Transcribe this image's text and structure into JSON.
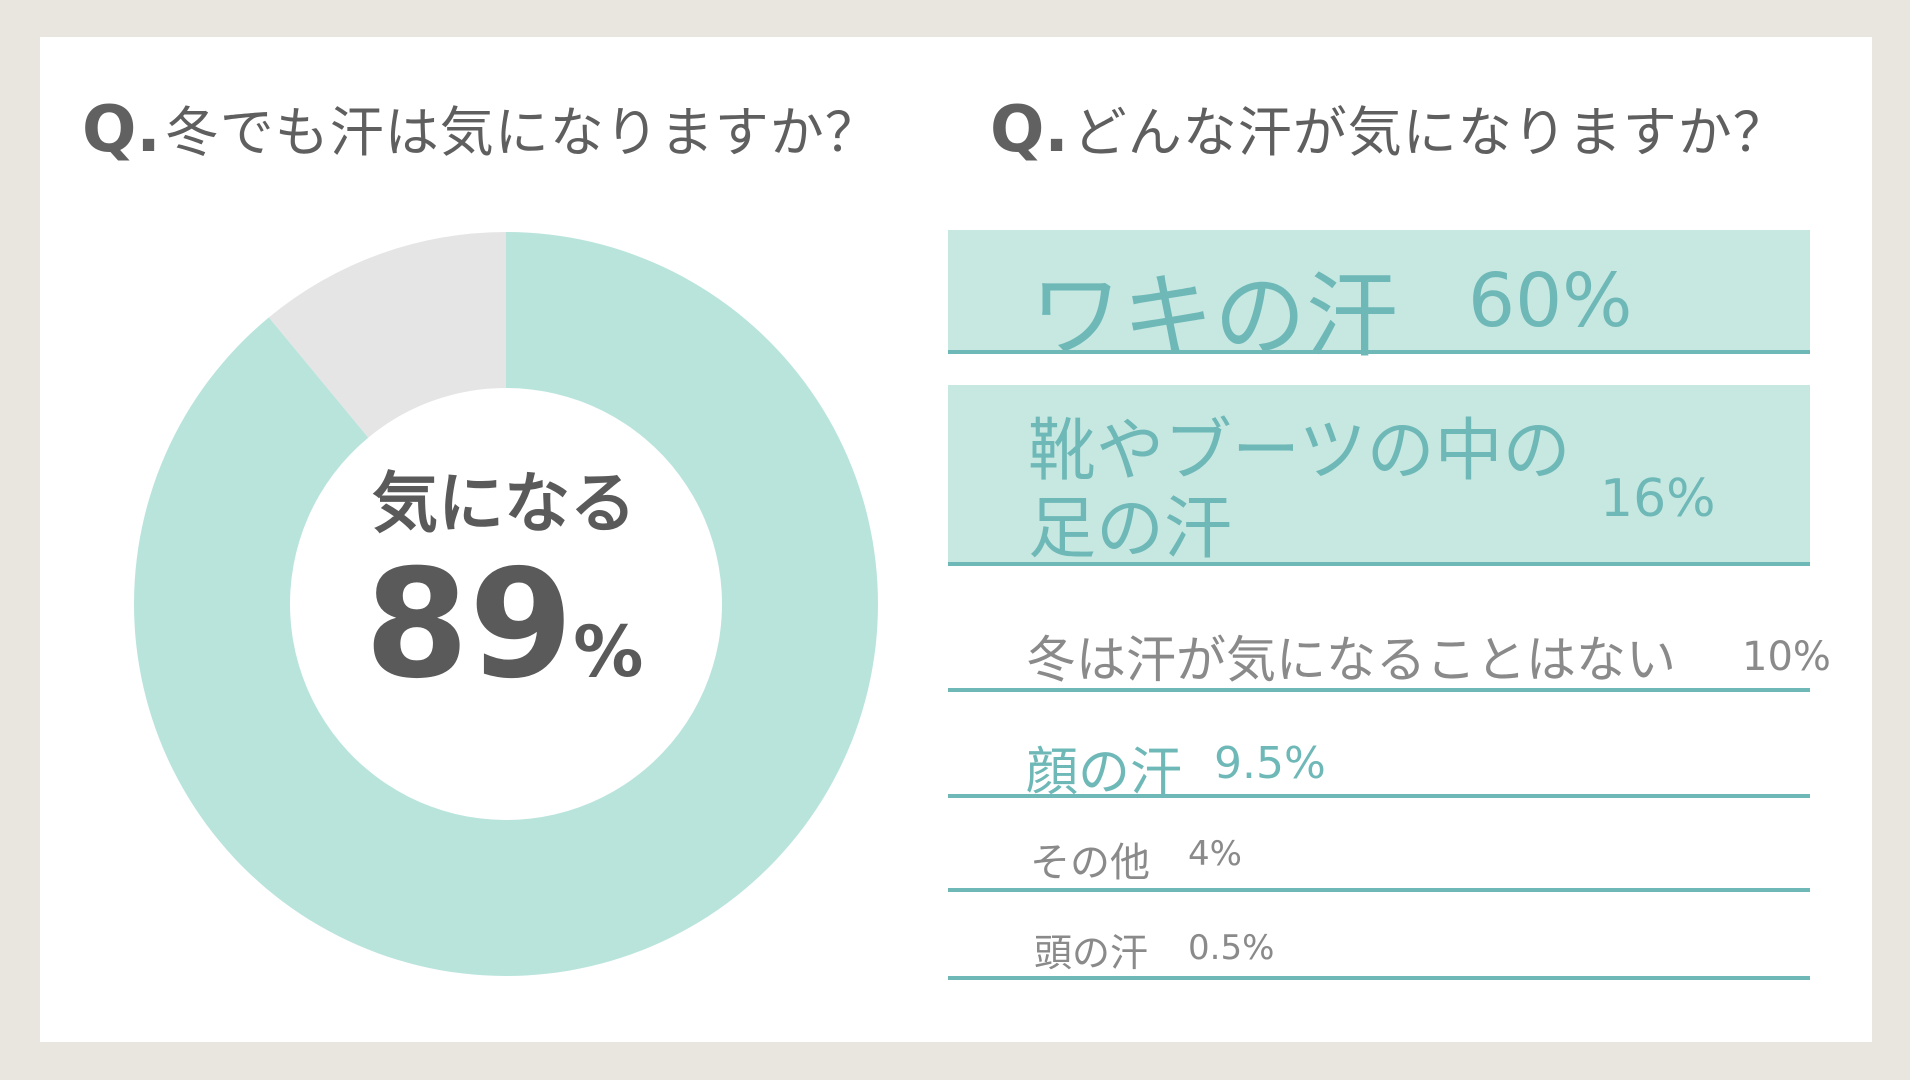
{
  "left_question": {
    "q": "Q.",
    "text": "冬でも汗は気になりますか？"
  },
  "right_question": {
    "q": "Q.",
    "text": "どんな汗が気になりますか？"
  },
  "donut": {
    "center_label": "気になる",
    "center_value": "89",
    "center_unit": "%"
  },
  "ranking": [
    {
      "label": "ワキの汗",
      "value": "60%"
    },
    {
      "label_line1": "靴やブーツの中の",
      "label_line2": "足の汗",
      "value": "16%"
    },
    {
      "label": "冬は汗が気になることはない",
      "value": "10%"
    },
    {
      "label": "顔の汗",
      "value": "9.5%"
    },
    {
      "label": "その他",
      "value": "4%"
    },
    {
      "label": "頭の汗",
      "value": "0.5%"
    }
  ],
  "colors": {
    "accent": "#6fb8b8",
    "donut_main": "#b9e4dc",
    "donut_rest": "#e5e5e5",
    "highlight_bg": "#c6e8e1",
    "text_gray": "#5a5a5a",
    "frame_bg": "#e9e6e0"
  },
  "chart_data": [
    {
      "type": "pie",
      "title": "冬でも汗は気になりますか？",
      "slices": [
        {
          "label": "気になる",
          "value": 89
        },
        {
          "label": "",
          "value": 11
        }
      ]
    },
    {
      "type": "bar",
      "title": "どんな汗が気になりますか？",
      "categories": [
        "ワキの汗",
        "靴やブーツの中の足の汗",
        "冬は汗が気になることはない",
        "顔の汗",
        "その他",
        "頭の汗"
      ],
      "values": [
        60,
        16,
        10,
        9.5,
        4,
        0.5
      ]
    }
  ]
}
